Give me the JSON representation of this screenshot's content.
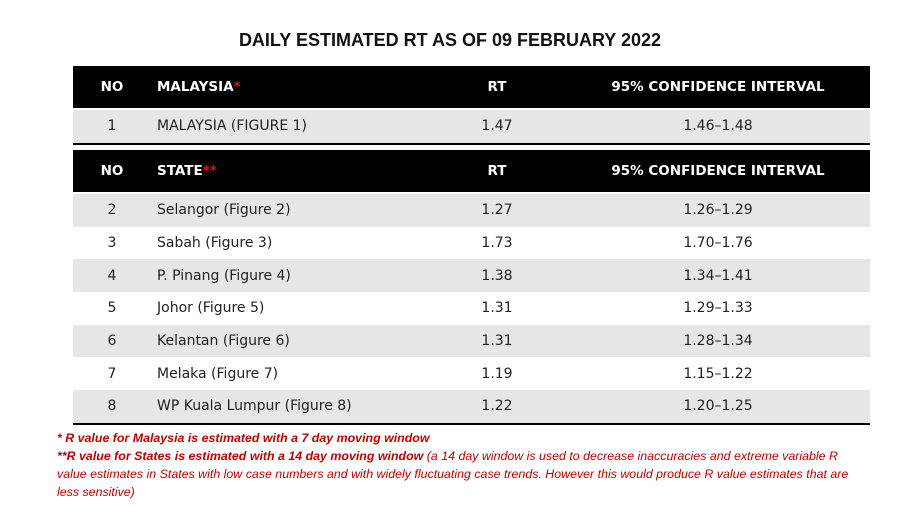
{
  "title": "DAILY ESTIMATED RT AS OF 09 FEBRUARY 2022",
  "national_table": {
    "header": [
      "NO",
      "MALAYSIA",
      "RT",
      "95% CONFIDENCE INTERVAL"
    ],
    "header_marker": "*",
    "rows": [
      [
        "1",
        "MALAYSIA (FIGURE 1)",
        "1.47",
        "1.46–1.48"
      ]
    ]
  },
  "state_table": {
    "header": [
      "NO",
      "STATE",
      "RT",
      "95% CONFIDENCE INTERVAL"
    ],
    "header_marker": "**",
    "rows": [
      [
        "2",
        "Selangor (Figure 2)",
        "1.27",
        "1.26–1.29"
      ],
      [
        "3",
        "Sabah (Figure 3)",
        "1.73",
        "1.70–1.76"
      ],
      [
        "4",
        "P. Pinang (Figure 4)",
        "1.38",
        "1.34–1.41"
      ],
      [
        "5",
        "Johor (Figure 5)",
        "1.31",
        "1.29–1.33"
      ],
      [
        "6",
        "Kelantan (Figure 6)",
        "1.31",
        "1.28–1.34"
      ],
      [
        "7",
        "Melaka (Figure 7)",
        "1.19",
        "1.15–1.22"
      ],
      [
        "8",
        "WP Kuala Lumpur (Figure 8)",
        "1.22",
        "1.20–1.25"
      ]
    ]
  },
  "footnotes": {
    "note_1": "*  R value for Malaysia is estimated with a 7 day moving window",
    "note_2_emphasis": "**R value for States is estimated with a 14 day moving window",
    "note_2_detail": "(a 14 day window is used to decrease inaccuracies and extreme variable R value estimates in States with low case numbers and with widely fluctuating case trends. However this would produce R value estimates that are less sensitive)"
  }
}
